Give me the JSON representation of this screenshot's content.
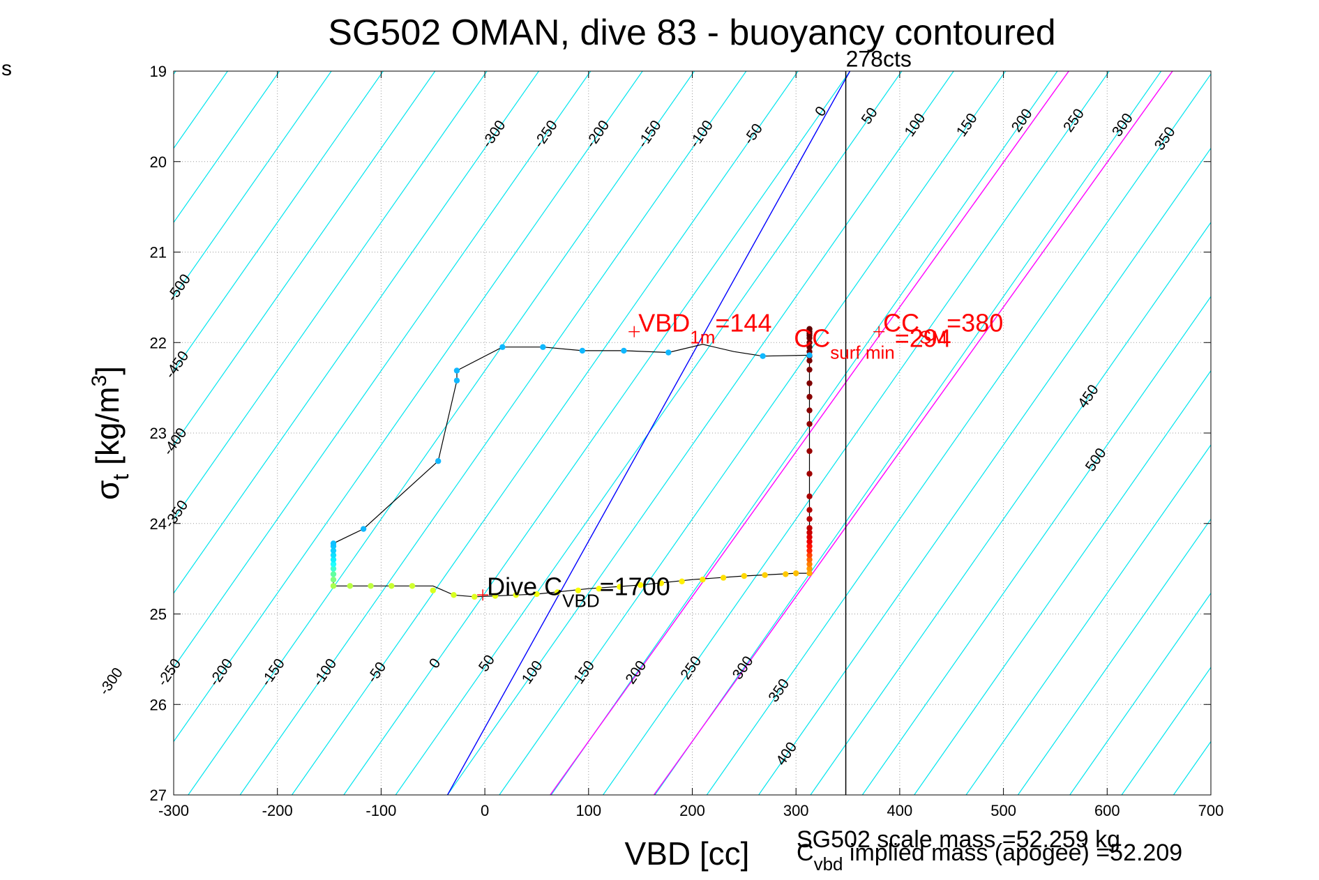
{
  "chart_data": {
    "type": "scatter",
    "title": "SG502 OMAN, dive 83 - buoyancy contoured",
    "xlabel": "VBD [cc]",
    "ylabel_main": "σ",
    "ylabel_sub": "t",
    "ylabel_rest": " [kg/m",
    "ylabel_sup": "3",
    "ylabel_close": "]",
    "corner_label": "s",
    "xlim": [
      -300,
      700
    ],
    "ylim": [
      19,
      27
    ],
    "y_reversed": true,
    "grid": true,
    "xticks": [
      -300,
      -200,
      -100,
      0,
      100,
      200,
      300,
      400,
      500,
      600,
      700
    ],
    "yticks": [
      19,
      20,
      21,
      22,
      23,
      24,
      25,
      26,
      27
    ],
    "contour_slope_cc_per_sigma": 61,
    "contour_zero_at_sigma19": 352,
    "contour_levels": [
      -500,
      -450,
      -400,
      -350,
      -300,
      -250,
      -200,
      -150,
      -100,
      -50,
      0,
      50,
      100,
      150,
      200,
      250,
      300,
      350,
      400,
      450,
      500
    ],
    "top_contour_labels": [
      {
        "text": "-300",
        "level": -300,
        "sigma": 19.7
      },
      {
        "text": "-250",
        "level": -250,
        "sigma": 19.7
      },
      {
        "text": "-200",
        "level": -200,
        "sigma": 19.7
      },
      {
        "text": "-150",
        "level": -150,
        "sigma": 19.7
      },
      {
        "text": "-100",
        "level": -100,
        "sigma": 19.7
      },
      {
        "text": "-50",
        "level": -50,
        "sigma": 19.7
      },
      {
        "text": "0",
        "level": 0,
        "sigma": 19.45
      },
      {
        "text": "50",
        "level": 50,
        "sigma": 19.5
      },
      {
        "text": "100",
        "level": 100,
        "sigma": 19.6
      },
      {
        "text": "150",
        "level": 150,
        "sigma": 19.6
      },
      {
        "text": "200",
        "level": 200,
        "sigma": 19.55
      },
      {
        "text": "250",
        "level": 250,
        "sigma": 19.55
      },
      {
        "text": "300",
        "level": 300,
        "sigma": 19.6
      },
      {
        "text": "350",
        "level": 350,
        "sigma": 19.75
      }
    ],
    "left_contour_labels": [
      {
        "text": "-500",
        "level": -500,
        "sigma": 21.4
      },
      {
        "text": "-450",
        "level": -450,
        "sigma": 22.25
      },
      {
        "text": "-400",
        "level": -400,
        "sigma": 23.1
      },
      {
        "text": "-350",
        "level": -350,
        "sigma": 23.9
      }
    ],
    "right_contour_labels": [
      {
        "text": "450",
        "level": 450,
        "sigma": 22.6
      },
      {
        "text": "500",
        "level": 500,
        "sigma": 23.3
      }
    ],
    "bottom_contour_labels": [
      {
        "text": "-300",
        "level": -300,
        "sigma": 25.75
      },
      {
        "text": "-250",
        "level": -250,
        "sigma": 25.65
      },
      {
        "text": "-200",
        "level": -200,
        "sigma": 25.65
      },
      {
        "text": "-150",
        "level": -150,
        "sigma": 25.65
      },
      {
        "text": "-100",
        "level": -100,
        "sigma": 25.65
      },
      {
        "text": "-50",
        "level": -50,
        "sigma": 25.65
      },
      {
        "text": "0",
        "level": 0,
        "sigma": 25.55
      },
      {
        "text": "50",
        "level": 50,
        "sigma": 25.55
      },
      {
        "text": "100",
        "level": 100,
        "sigma": 25.65
      },
      {
        "text": "150",
        "level": 150,
        "sigma": 25.65
      },
      {
        "text": "200",
        "level": 200,
        "sigma": 25.65
      },
      {
        "text": "250",
        "level": 250,
        "sigma": 25.6
      },
      {
        "text": "300",
        "level": 300,
        "sigma": 25.6
      },
      {
        "text": "350",
        "level": 350,
        "sigma": 25.85
      },
      {
        "text": "400",
        "level": 400,
        "sigma": 26.55
      }
    ],
    "reference_lines": [
      {
        "kind": "blue",
        "points": [
          [
            352,
            19.0
          ],
          [
            -36,
            27.0
          ]
        ]
      },
      {
        "kind": "magenta",
        "points": [
          [
            563,
            19.0
          ],
          [
            63,
            27.0
          ]
        ]
      },
      {
        "kind": "magenta",
        "points": [
          [
            663,
            19.0
          ],
          [
            163,
            27.0
          ]
        ]
      },
      {
        "kind": "black",
        "x": 348
      }
    ],
    "annotations": [
      {
        "text": "278cts",
        "x": 348,
        "y": 18.95,
        "color": "#000000"
      },
      {
        "prefix": "VBD",
        "sub": "1m",
        "suffix": "=144",
        "x": 144,
        "y": 21.88,
        "color": "#ff0000"
      },
      {
        "prefix": "CC",
        "sub": "SM",
        "suffix": "=380",
        "x": 380,
        "y": 21.88,
        "color": "#ff0000"
      },
      {
        "prefix": "CC",
        "sub": "surf min",
        "suffix": "=294",
        "x": 294,
        "y": 22.05,
        "color": "#ff0000"
      },
      {
        "prefix": "Dive C",
        "sub": "VBD",
        "suffix": "=1700",
        "x": -2,
        "y": 24.79,
        "color": "#000000"
      }
    ],
    "plus_markers": [
      {
        "x": 144,
        "y": 21.88,
        "color": "#ff0000"
      },
      {
        "x": 380,
        "y": 21.88,
        "color": "#ff0000"
      },
      {
        "x": -2,
        "y": 24.79,
        "color": "#ff0000"
      }
    ],
    "footer_mass_label": "SG502 scale mass =52.259 kg",
    "footer_implied_prefix": "C",
    "footer_implied_sub": "vbd",
    "footer_implied_suffix": " implied mass (apogee) =52.209",
    "series": [
      {
        "kind": "dive_trace",
        "x": [
          313,
          313,
          313,
          313,
          313,
          313,
          313,
          313,
          313,
          313,
          313,
          313,
          313,
          313,
          313,
          313,
          313,
          313,
          313,
          313,
          313,
          313,
          313,
          313,
          313,
          313,
          313,
          300,
          290,
          270,
          250,
          230,
          210,
          190,
          170,
          150,
          130,
          110,
          90,
          70,
          50,
          30,
          10,
          -10,
          -30,
          -50,
          -70,
          -90,
          -110,
          -130,
          -146,
          -146,
          -146,
          -146,
          -146,
          -146,
          -146,
          -146,
          -146,
          -146,
          -117,
          -45,
          -27,
          -27,
          17,
          56,
          94,
          134,
          177,
          268,
          313,
          313,
          313,
          313,
          313,
          313
        ],
        "y": [
          24.55,
          24.5,
          24.45,
          24.4,
          24.35,
          24.3,
          24.25,
          24.2,
          24.15,
          24.1,
          24.05,
          23.95,
          23.85,
          23.7,
          23.45,
          23.2,
          22.9,
          22.75,
          22.6,
          22.45,
          22.3,
          22.2,
          22.15,
          22.1,
          22.05,
          21.9,
          21.85,
          24.55,
          24.56,
          24.57,
          24.58,
          24.6,
          24.62,
          24.64,
          24.66,
          24.68,
          24.7,
          24.72,
          24.74,
          24.76,
          24.78,
          24.79,
          24.8,
          24.81,
          24.79,
          24.74,
          24.69,
          24.69,
          24.69,
          24.69,
          24.69,
          24.62,
          24.56,
          24.5,
          24.45,
          24.4,
          24.35,
          24.3,
          24.25,
          24.22,
          24.06,
          23.31,
          22.42,
          22.31,
          22.05,
          22.05,
          22.09,
          22.09,
          22.11,
          22.15,
          22.14,
          22.0,
          21.95,
          21.92,
          21.88,
          21.85
        ],
        "colors": [
          "#ffb000",
          "#ff9900",
          "#ff7f00",
          "#ff6600",
          "#ff4400",
          "#ff2200",
          "#ff1100",
          "#ee0000",
          "#dd0000",
          "#cc0000",
          "#c00000",
          "#bb0000",
          "#b30000",
          "#aa0000",
          "#a00000",
          "#990000",
          "#900000",
          "#880000",
          "#880000",
          "#800000",
          "#800000",
          "#780000",
          "#700000",
          "#700000",
          "#700000",
          "#600000",
          "#600000",
          "#ffc000",
          "#ffc800",
          "#ffd000",
          "#ffd800",
          "#ffe000",
          "#ffe800",
          "#fff000",
          "#fff000",
          "#fff800",
          "#ffff00",
          "#ffff00",
          "#f8ff00",
          "#f0ff10",
          "#f0ff10",
          "#e8ff10",
          "#e8ff10",
          "#e0ff20",
          "#d8ff20",
          "#d8ff20",
          "#d0ff30",
          "#c8ff30",
          "#c0ff40",
          "#b8ff40",
          "#a8ff50",
          "#80ff80",
          "#60ffa0",
          "#40ffd0",
          "#20ffff",
          "#10f0ff",
          "#10e0ff",
          "#10d0ff",
          "#10c8ff",
          "#10c0ff",
          "#10b8ff",
          "#10b8ff",
          "#10b8ff",
          "#10b8ff",
          "#10b8ff",
          "#10b8ff",
          "#10b8ff",
          "#10b8ff",
          "#10b8ff",
          "#10b8ff",
          "#10b8ff",
          "#700000",
          "#700000",
          "#600000",
          "#600000",
          "#600000"
        ],
        "line_path_x": [
          313,
          313,
          300,
          250,
          200,
          150,
          100,
          50,
          30,
          10,
          -10,
          -30,
          -50,
          -146,
          -146,
          -146,
          -117,
          -45,
          -27,
          -27,
          17,
          56,
          94,
          134,
          177,
          210,
          240,
          268,
          313
        ],
        "line_path_y": [
          21.85,
          24.55,
          24.55,
          24.58,
          24.62,
          24.68,
          24.72,
          24.78,
          24.79,
          24.8,
          24.81,
          24.79,
          24.69,
          24.69,
          24.22,
          24.22,
          24.06,
          23.31,
          22.42,
          22.31,
          22.05,
          22.05,
          22.09,
          22.09,
          22.11,
          22.02,
          22.1,
          22.15,
          22.14
        ]
      }
    ],
    "colors": {
      "contour": "#00e5ee",
      "blue_line": "#0000ff",
      "magenta_line": "#ff00ff",
      "grid": "#999999",
      "annotation_red": "#ff0000",
      "trace_line": "#000000"
    }
  }
}
